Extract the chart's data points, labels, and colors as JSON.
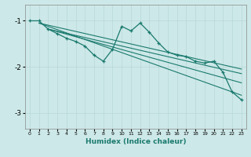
{
  "xlabel": "Humidex (Indice chaleur)",
  "ylabel": "",
  "bg_color": "#cde8e8",
  "grid_color": "#b8d8d8",
  "line_color": "#1a7a6e",
  "xlim": [
    -0.5,
    23.5
  ],
  "ylim": [
    -3.35,
    -0.65
  ],
  "yticks": [
    -3,
    -2,
    -1
  ],
  "xticks": [
    0,
    1,
    2,
    3,
    4,
    5,
    6,
    7,
    8,
    9,
    10,
    11,
    12,
    13,
    14,
    15,
    16,
    17,
    18,
    19,
    20,
    21,
    22,
    23
  ],
  "series1_x": [
    0,
    1,
    2,
    3,
    4,
    5,
    6,
    7,
    8,
    9,
    10,
    11,
    12,
    13,
    14,
    15,
    16,
    17,
    18,
    19,
    20,
    21,
    22,
    23
  ],
  "series1_y": [
    -1.0,
    -1.0,
    -1.18,
    -1.28,
    -1.38,
    -1.45,
    -1.55,
    -1.75,
    -1.88,
    -1.62,
    -1.12,
    -1.22,
    -1.05,
    -1.25,
    -1.48,
    -1.68,
    -1.75,
    -1.78,
    -1.88,
    -1.92,
    -1.88,
    -2.12,
    -2.55,
    -2.72
  ],
  "line2_x": [
    1,
    23
  ],
  "line2_y": [
    -1.05,
    -2.05
  ],
  "line3_x": [
    1,
    23
  ],
  "line3_y": [
    -1.05,
    -2.62
  ],
  "line4_x": [
    2,
    23
  ],
  "line4_y": [
    -1.18,
    -2.15
  ],
  "line5_x": [
    2,
    23
  ],
  "line5_y": [
    -1.18,
    -2.35
  ]
}
